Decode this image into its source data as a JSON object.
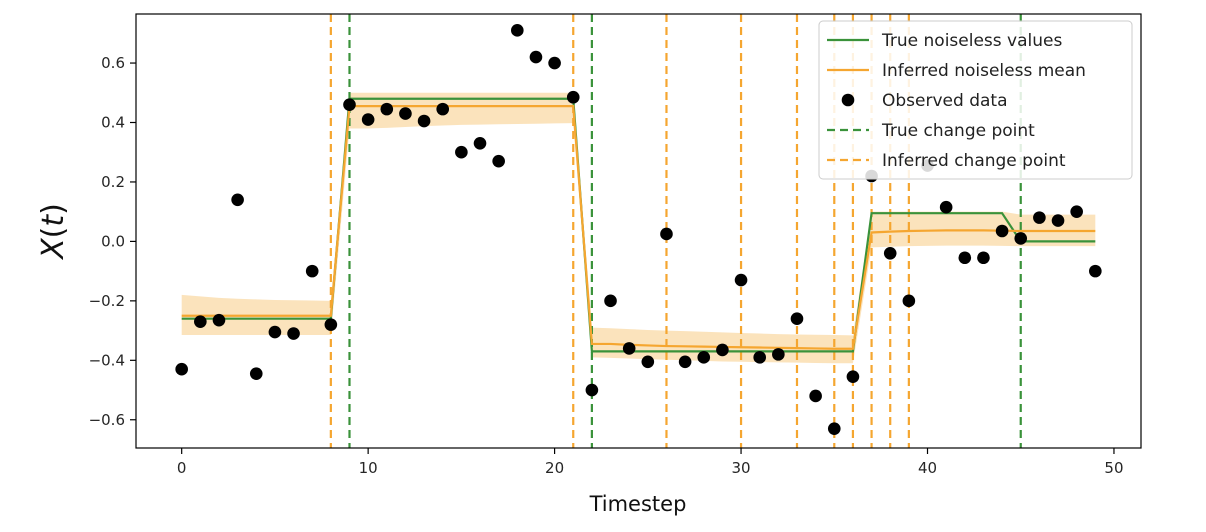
{
  "chart_data": {
    "type": "line",
    "title": "",
    "xlabel": "Timestep",
    "ylabel": "X(t)",
    "xlim": [
      -2.45,
      51.45
    ],
    "ylim": [
      -0.695,
      0.765
    ],
    "xticks": [
      0,
      10,
      20,
      30,
      40,
      50
    ],
    "yticks": [
      -0.6,
      -0.4,
      -0.2,
      0.0,
      0.2,
      0.4,
      0.6
    ],
    "xtick_labels": [
      "0",
      "10",
      "20",
      "30",
      "40",
      "50"
    ],
    "ytick_labels": [
      "−0.6",
      "−0.4",
      "−0.2",
      "0.0",
      "0.2",
      "0.4",
      "0.6"
    ],
    "grid": false,
    "legend_position": "top-right",
    "colors": {
      "true_values": "#3a923a",
      "inferred_mean": "#f5a630",
      "band": "#f9d9a6",
      "observed": "#000000",
      "true_cp": "#3a923a",
      "inferred_cp": "#f5a630"
    },
    "series": [
      {
        "name": "True noiseless values",
        "kind": "line",
        "x": [
          0,
          1,
          2,
          3,
          4,
          5,
          6,
          7,
          8,
          9,
          10,
          11,
          12,
          13,
          14,
          15,
          16,
          17,
          18,
          19,
          20,
          21,
          22,
          23,
          24,
          25,
          26,
          27,
          28,
          29,
          30,
          31,
          32,
          33,
          34,
          35,
          36,
          37,
          38,
          39,
          40,
          41,
          42,
          43,
          44,
          45,
          46,
          47,
          48,
          49
        ],
        "y": [
          -0.26,
          -0.26,
          -0.26,
          -0.26,
          -0.26,
          -0.26,
          -0.26,
          -0.26,
          -0.26,
          0.48,
          0.48,
          0.48,
          0.48,
          0.48,
          0.48,
          0.48,
          0.48,
          0.48,
          0.48,
          0.48,
          0.48,
          0.48,
          -0.37,
          -0.37,
          -0.37,
          -0.37,
          -0.37,
          -0.37,
          -0.37,
          -0.37,
          -0.37,
          -0.37,
          -0.37,
          -0.37,
          -0.37,
          -0.37,
          -0.37,
          0.095,
          0.095,
          0.095,
          0.095,
          0.095,
          0.095,
          0.095,
          0.095,
          0.0,
          0.0,
          0.0,
          0.0,
          0.0
        ]
      },
      {
        "name": "Inferred noiseless mean",
        "kind": "line",
        "x": [
          0,
          1,
          2,
          3,
          4,
          5,
          6,
          7,
          8,
          9,
          10,
          11,
          12,
          13,
          14,
          15,
          16,
          17,
          18,
          19,
          20,
          21,
          22,
          23,
          24,
          25,
          26,
          27,
          28,
          29,
          30,
          31,
          32,
          33,
          34,
          35,
          36,
          37,
          38,
          39,
          40,
          41,
          42,
          43,
          44,
          45,
          46,
          47,
          48,
          49
        ],
        "y": [
          -0.25,
          -0.25,
          -0.25,
          -0.25,
          -0.25,
          -0.25,
          -0.25,
          -0.25,
          -0.25,
          0.455,
          0.455,
          0.455,
          0.455,
          0.455,
          0.455,
          0.455,
          0.455,
          0.455,
          0.455,
          0.455,
          0.455,
          0.455,
          -0.345,
          -0.345,
          -0.348,
          -0.35,
          -0.352,
          -0.353,
          -0.354,
          -0.355,
          -0.356,
          -0.357,
          -0.358,
          -0.359,
          -0.36,
          -0.361,
          -0.361,
          0.03,
          0.033,
          0.035,
          0.036,
          0.037,
          0.037,
          0.037,
          0.036,
          0.035,
          0.035,
          0.035,
          0.035,
          0.035
        ],
        "band_lower": [
          -0.315,
          -0.315,
          -0.315,
          -0.315,
          -0.315,
          -0.315,
          -0.315,
          -0.315,
          -0.315,
          0.38,
          0.38,
          0.382,
          0.385,
          0.388,
          0.39,
          0.392,
          0.393,
          0.394,
          0.395,
          0.396,
          0.397,
          0.398,
          -0.39,
          -0.392,
          -0.394,
          -0.396,
          -0.398,
          -0.4,
          -0.402,
          -0.404,
          -0.405,
          -0.406,
          -0.407,
          -0.408,
          -0.409,
          -0.41,
          -0.41,
          -0.02,
          -0.018,
          -0.016,
          -0.015,
          -0.014,
          -0.014,
          -0.014,
          -0.015,
          -0.016,
          -0.016,
          -0.016,
          -0.016,
          -0.016
        ],
        "band_upper": [
          -0.18,
          -0.185,
          -0.19,
          -0.193,
          -0.195,
          -0.197,
          -0.198,
          -0.199,
          -0.2,
          0.5,
          0.5,
          0.5,
          0.5,
          0.5,
          0.5,
          0.5,
          0.5,
          0.5,
          0.5,
          0.5,
          0.5,
          0.5,
          -0.29,
          -0.292,
          -0.295,
          -0.298,
          -0.3,
          -0.302,
          -0.304,
          -0.306,
          -0.308,
          -0.31,
          -0.312,
          -0.313,
          -0.314,
          -0.315,
          -0.316,
          0.1,
          0.1,
          0.1,
          0.1,
          0.1,
          0.1,
          0.1,
          0.1,
          0.09,
          0.09,
          0.09,
          0.09,
          0.09
        ]
      },
      {
        "name": "Observed data",
        "kind": "scatter",
        "x": [
          0,
          1,
          2,
          3,
          4,
          5,
          6,
          7,
          8,
          9,
          10,
          11,
          12,
          13,
          14,
          15,
          16,
          17,
          18,
          19,
          20,
          21,
          22,
          23,
          24,
          25,
          26,
          27,
          28,
          29,
          30,
          31,
          32,
          33,
          34,
          35,
          36,
          37,
          38,
          39,
          40,
          41,
          42,
          43,
          44,
          45,
          46,
          47,
          48,
          49
        ],
        "y": [
          -0.43,
          -0.27,
          -0.265,
          0.14,
          -0.445,
          -0.305,
          -0.31,
          -0.1,
          -0.28,
          0.46,
          0.41,
          0.445,
          0.43,
          0.405,
          0.445,
          0.3,
          0.33,
          0.27,
          0.71,
          0.62,
          0.6,
          0.485,
          -0.5,
          -0.2,
          -0.36,
          -0.405,
          0.025,
          -0.405,
          -0.39,
          -0.365,
          -0.13,
          -0.39,
          -0.38,
          -0.26,
          -0.52,
          -0.63,
          -0.455,
          0.22,
          -0.04,
          -0.2,
          0.255,
          0.115,
          -0.055,
          -0.055,
          0.035,
          0.01,
          0.08,
          0.07,
          0.1,
          -0.1
        ]
      }
    ],
    "vlines": {
      "true_change_points": {
        "name": "True change point",
        "x": [
          9,
          22,
          45
        ]
      },
      "inferred_change_points": {
        "name": "Inferred change point",
        "x": [
          8,
          21,
          26,
          30,
          33,
          35,
          36,
          37,
          38,
          39
        ]
      }
    },
    "legend": [
      {
        "label": "True noiseless values",
        "kind": "line",
        "color": "#3a923a"
      },
      {
        "label": "Inferred noiseless mean",
        "kind": "line",
        "color": "#f5a630"
      },
      {
        "label": "Observed data",
        "kind": "marker",
        "color": "#000000"
      },
      {
        "label": "True change point",
        "kind": "dashed",
        "color": "#3a923a"
      },
      {
        "label": "Inferred change point",
        "kind": "dashed",
        "color": "#f5a630"
      }
    ]
  }
}
